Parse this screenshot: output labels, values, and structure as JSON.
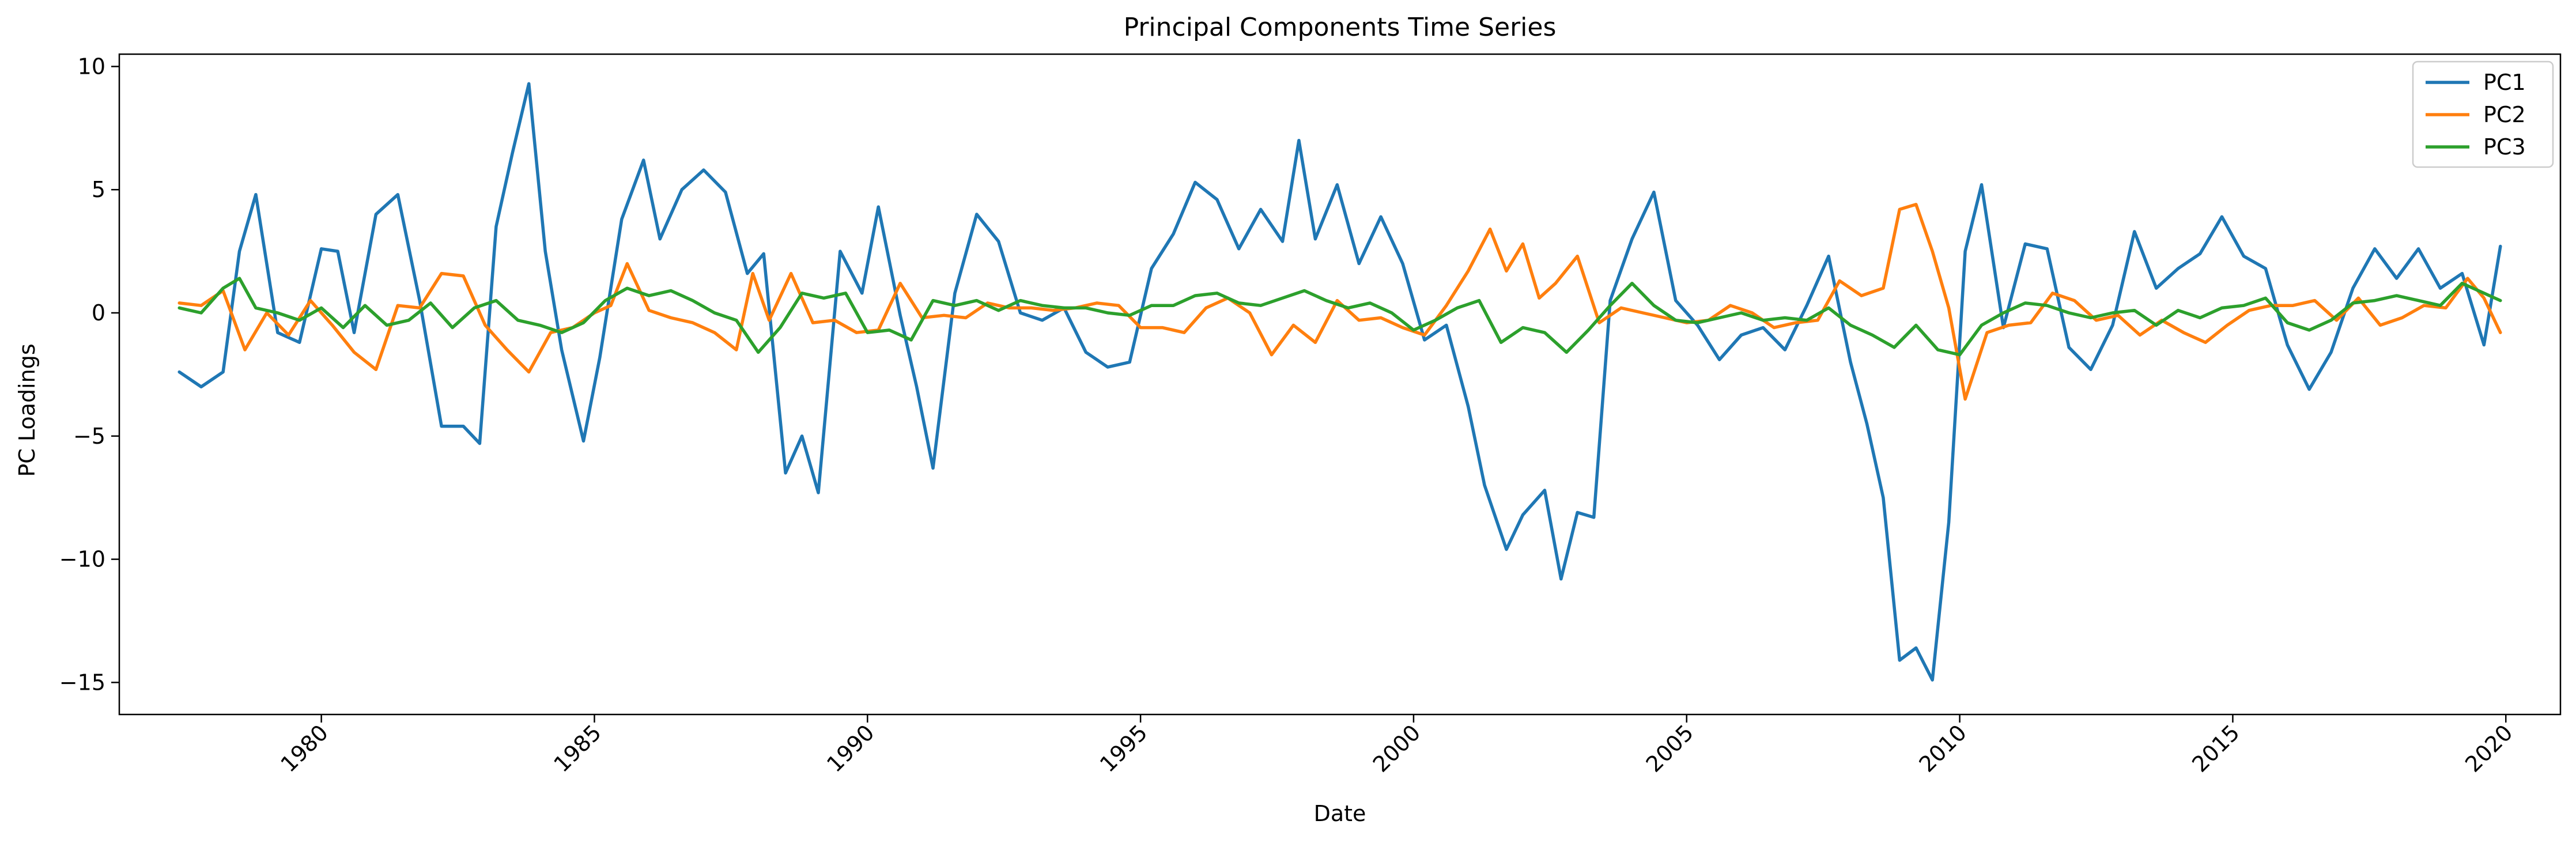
{
  "chart_data": {
    "type": "line",
    "title": "Principal Components Time Series",
    "xlabel": "Date",
    "ylabel": "PC Loadings",
    "xlim": [
      1976.3,
      2021.0
    ],
    "ylim": [
      -16.3,
      10.5
    ],
    "x_ticks": [
      1980,
      1985,
      1990,
      1995,
      2000,
      2005,
      2010,
      2015,
      2020
    ],
    "x_tick_labels": [
      "1980",
      "1985",
      "1990",
      "1995",
      "2000",
      "2005",
      "2010",
      "2015",
      "2020"
    ],
    "y_ticks": [
      -15,
      -10,
      -5,
      0,
      5,
      10
    ],
    "y_tick_labels": [
      "−15",
      "−10",
      "−5",
      "0",
      "5",
      "10"
    ],
    "grid": false,
    "legend_position": "top-right",
    "series": [
      {
        "name": "PC1",
        "color": "#1f77b4",
        "x": [
          1977.4,
          1977.8,
          1978.2,
          1978.5,
          1978.8,
          1979.2,
          1979.6,
          1980.0,
          1980.3,
          1980.6,
          1981.0,
          1981.4,
          1981.8,
          1982.2,
          1982.6,
          1982.9,
          1983.2,
          1983.5,
          1983.8,
          1984.1,
          1984.4,
          1984.8,
          1985.1,
          1985.5,
          1985.9,
          1986.2,
          1986.6,
          1987.0,
          1987.4,
          1987.8,
          1988.1,
          1988.5,
          1988.8,
          1989.1,
          1989.5,
          1989.9,
          1990.2,
          1990.6,
          1990.9,
          1991.2,
          1991.6,
          1992.0,
          1992.4,
          1992.8,
          1993.2,
          1993.6,
          1994.0,
          1994.4,
          1994.8,
          1995.2,
          1995.6,
          1996.0,
          1996.4,
          1996.8,
          1997.2,
          1997.6,
          1997.9,
          1998.2,
          1998.6,
          1999.0,
          1999.4,
          1999.8,
          2000.2,
          2000.6,
          2001.0,
          2001.3,
          2001.7,
          2002.0,
          2002.4,
          2002.7,
          2003.0,
          2003.3,
          2003.6,
          2004.0,
          2004.4,
          2004.8,
          2005.2,
          2005.6,
          2006.0,
          2006.4,
          2006.8,
          2007.2,
          2007.6,
          2008.0,
          2008.3,
          2008.6,
          2008.9,
          2009.2,
          2009.5,
          2009.8,
          2010.1,
          2010.4,
          2010.8,
          2011.2,
          2011.6,
          2012.0,
          2012.4,
          2012.8,
          2013.2,
          2013.6,
          2014.0,
          2014.4,
          2014.8,
          2015.2,
          2015.6,
          2016.0,
          2016.4,
          2016.8,
          2017.2,
          2017.6,
          2018.0,
          2018.4,
          2018.8,
          2019.2,
          2019.6,
          2019.9
        ],
        "y": [
          -2.4,
          -3.0,
          -2.4,
          2.5,
          4.8,
          -0.8,
          -1.2,
          2.6,
          2.5,
          -0.8,
          4.0,
          4.8,
          0.5,
          -4.6,
          -4.6,
          -5.3,
          3.5,
          6.5,
          9.3,
          2.5,
          -1.5,
          -5.2,
          -1.8,
          3.8,
          6.2,
          3.0,
          5.0,
          5.8,
          4.9,
          1.6,
          2.4,
          -6.5,
          -5.0,
          -7.3,
          2.5,
          0.8,
          4.3,
          -0.1,
          -3.0,
          -6.3,
          0.8,
          4.0,
          2.9,
          0.0,
          -0.3,
          0.2,
          -1.6,
          -2.2,
          -2.0,
          1.8,
          3.2,
          5.3,
          4.6,
          2.6,
          4.2,
          2.9,
          7.0,
          3.0,
          5.2,
          2.0,
          3.9,
          2.0,
          -1.1,
          -0.5,
          -3.8,
          -7.0,
          -9.6,
          -8.2,
          -7.2,
          -10.8,
          -8.1,
          -8.3,
          0.5,
          3.0,
          4.9,
          0.5,
          -0.5,
          -1.9,
          -0.9,
          -0.6,
          -1.5,
          0.3,
          2.3,
          -2.0,
          -4.5,
          -7.5,
          -14.1,
          -13.6,
          -14.9,
          -8.5,
          2.5,
          5.2,
          -0.6,
          2.8,
          2.6,
          -1.4,
          -2.3,
          -0.5,
          3.3,
          1.0,
          1.8,
          2.4,
          3.9,
          2.3,
          1.8,
          -1.3,
          -3.1,
          -1.6,
          1.0,
          2.6,
          1.4,
          2.6,
          1.0,
          1.6,
          -1.3,
          2.7
        ]
      },
      {
        "name": "PC2",
        "color": "#ff7f0e",
        "x": [
          1977.4,
          1977.8,
          1978.2,
          1978.6,
          1979.0,
          1979.4,
          1979.8,
          1980.2,
          1980.6,
          1981.0,
          1981.4,
          1981.8,
          1982.2,
          1982.6,
          1983.0,
          1983.4,
          1983.8,
          1984.2,
          1984.6,
          1985.0,
          1985.3,
          1985.6,
          1986.0,
          1986.4,
          1986.8,
          1987.2,
          1987.6,
          1987.9,
          1988.2,
          1988.6,
          1989.0,
          1989.4,
          1989.8,
          1990.2,
          1990.6,
          1991.0,
          1991.4,
          1991.8,
          1992.2,
          1992.6,
          1993.0,
          1993.4,
          1993.8,
          1994.2,
          1994.6,
          1995.0,
          1995.4,
          1995.8,
          1996.2,
          1996.6,
          1997.0,
          1997.4,
          1997.8,
          1998.2,
          1998.6,
          1999.0,
          1999.4,
          1999.8,
          2000.2,
          2000.6,
          2001.0,
          2001.4,
          2001.7,
          2002.0,
          2002.3,
          2002.6,
          2003.0,
          2003.4,
          2003.8,
          2004.2,
          2004.6,
          2005.0,
          2005.4,
          2005.8,
          2006.2,
          2006.6,
          2007.0,
          2007.4,
          2007.8,
          2008.2,
          2008.6,
          2008.9,
          2009.2,
          2009.5,
          2009.8,
          2010.1,
          2010.5,
          2010.9,
          2011.3,
          2011.7,
          2012.1,
          2012.5,
          2012.9,
          2013.3,
          2013.7,
          2014.1,
          2014.5,
          2014.9,
          2015.3,
          2015.7,
          2016.1,
          2016.5,
          2016.9,
          2017.3,
          2017.7,
          2018.1,
          2018.5,
          2018.9,
          2019.3,
          2019.6,
          2019.9
        ],
        "y": [
          0.4,
          0.3,
          0.9,
          -1.5,
          0.0,
          -0.9,
          0.5,
          -0.5,
          -1.6,
          -2.3,
          0.3,
          0.2,
          1.6,
          1.5,
          -0.5,
          -1.5,
          -2.4,
          -0.8,
          -0.6,
          0.0,
          0.3,
          2.0,
          0.1,
          -0.2,
          -0.4,
          -0.8,
          -1.5,
          1.6,
          -0.3,
          1.6,
          -0.4,
          -0.3,
          -0.8,
          -0.7,
          1.2,
          -0.2,
          -0.1,
          -0.2,
          0.4,
          0.2,
          0.2,
          0.1,
          0.2,
          0.4,
          0.3,
          -0.6,
          -0.6,
          -0.8,
          0.2,
          0.6,
          0.0,
          -1.7,
          -0.5,
          -1.2,
          0.5,
          -0.3,
          -0.2,
          -0.6,
          -0.9,
          0.3,
          1.7,
          3.4,
          1.7,
          2.8,
          0.6,
          1.2,
          2.3,
          -0.4,
          0.2,
          0.0,
          -0.2,
          -0.4,
          -0.3,
          0.3,
          0.0,
          -0.6,
          -0.4,
          -0.3,
          1.3,
          0.7,
          1.0,
          4.2,
          4.4,
          2.5,
          0.2,
          -3.5,
          -0.8,
          -0.5,
          -0.4,
          0.8,
          0.5,
          -0.3,
          -0.1,
          -0.9,
          -0.3,
          -0.8,
          -1.2,
          -0.5,
          0.1,
          0.3,
          0.3,
          0.5,
          -0.3,
          0.6,
          -0.5,
          -0.2,
          0.3,
          0.2,
          1.4,
          0.6,
          -0.8
        ]
      },
      {
        "name": "PC3",
        "color": "#2ca02c",
        "x": [
          1977.4,
          1977.8,
          1978.2,
          1978.5,
          1978.8,
          1979.2,
          1979.6,
          1980.0,
          1980.4,
          1980.8,
          1981.2,
          1981.6,
          1982.0,
          1982.4,
          1982.8,
          1983.2,
          1983.6,
          1984.0,
          1984.4,
          1984.8,
          1985.2,
          1985.6,
          1986.0,
          1986.4,
          1986.8,
          1987.2,
          1987.6,
          1988.0,
          1988.4,
          1988.8,
          1989.2,
          1989.6,
          1990.0,
          1990.4,
          1990.8,
          1991.2,
          1991.6,
          1992.0,
          1992.4,
          1992.8,
          1993.2,
          1993.6,
          1994.0,
          1994.4,
          1994.8,
          1995.2,
          1995.6,
          1996.0,
          1996.4,
          1996.8,
          1997.2,
          1997.6,
          1998.0,
          1998.4,
          1998.8,
          1999.2,
          1999.6,
          2000.0,
          2000.4,
          2000.8,
          2001.2,
          2001.6,
          2002.0,
          2002.4,
          2002.8,
          2003.2,
          2003.6,
          2004.0,
          2004.4,
          2004.8,
          2005.2,
          2005.6,
          2006.0,
          2006.4,
          2006.8,
          2007.2,
          2007.6,
          2008.0,
          2008.4,
          2008.8,
          2009.2,
          2009.6,
          2010.0,
          2010.4,
          2010.8,
          2011.2,
          2011.6,
          2012.0,
          2012.4,
          2012.8,
          2013.2,
          2013.6,
          2014.0,
          2014.4,
          2014.8,
          2015.2,
          2015.6,
          2016.0,
          2016.4,
          2016.8,
          2017.2,
          2017.6,
          2018.0,
          2018.4,
          2018.8,
          2019.2,
          2019.6,
          2019.9
        ],
        "y": [
          0.2,
          0.0,
          1.0,
          1.4,
          0.2,
          0.0,
          -0.3,
          0.2,
          -0.6,
          0.3,
          -0.5,
          -0.3,
          0.4,
          -0.6,
          0.2,
          0.5,
          -0.3,
          -0.5,
          -0.8,
          -0.4,
          0.5,
          1.0,
          0.7,
          0.9,
          0.5,
          0.0,
          -0.3,
          -1.6,
          -0.6,
          0.8,
          0.6,
          0.8,
          -0.8,
          -0.7,
          -1.1,
          0.5,
          0.3,
          0.5,
          0.1,
          0.5,
          0.3,
          0.2,
          0.2,
          0.0,
          -0.1,
          0.3,
          0.3,
          0.7,
          0.8,
          0.4,
          0.3,
          0.6,
          0.9,
          0.5,
          0.2,
          0.4,
          0.0,
          -0.7,
          -0.3,
          0.2,
          0.5,
          -1.2,
          -0.6,
          -0.8,
          -1.6,
          -0.7,
          0.3,
          1.2,
          0.3,
          -0.3,
          -0.4,
          -0.2,
          0.0,
          -0.3,
          -0.2,
          -0.3,
          0.2,
          -0.5,
          -0.9,
          -1.4,
          -0.5,
          -1.5,
          -1.7,
          -0.5,
          0.0,
          0.4,
          0.3,
          0.0,
          -0.2,
          0.0,
          0.1,
          -0.5,
          0.1,
          -0.2,
          0.2,
          0.3,
          0.6,
          -0.4,
          -0.7,
          -0.3,
          0.4,
          0.5,
          0.7,
          0.5,
          0.3,
          1.2,
          0.8,
          0.5
        ]
      }
    ]
  }
}
